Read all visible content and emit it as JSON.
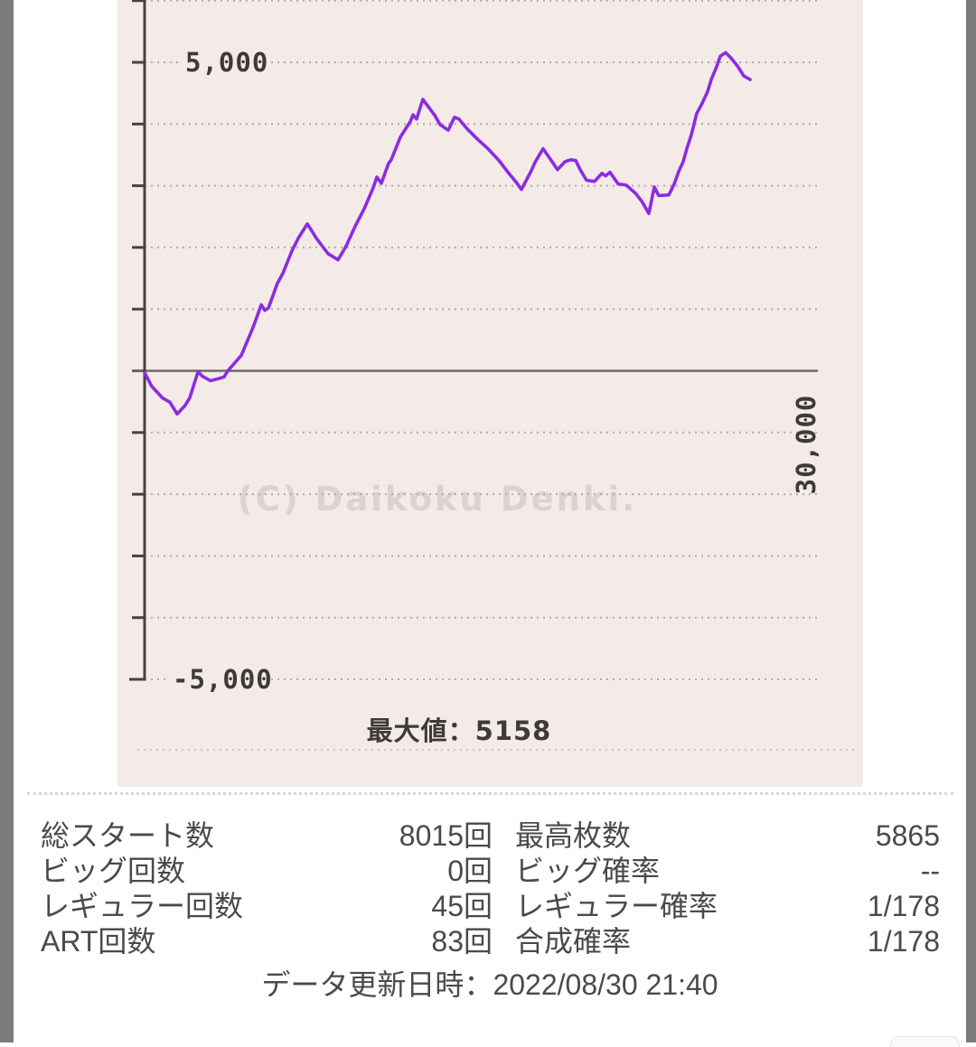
{
  "page": {
    "edge_color": "#7b7b7b",
    "panel_color": "#f4ebe8"
  },
  "chart_data": {
    "type": "line",
    "line_color": "#8b2ce0",
    "x_axis": {
      "min": 0,
      "max": 30000,
      "max_label": "30,000"
    },
    "y_axis": {
      "min": -5000,
      "max": 6000,
      "step": 1000,
      "top_label": "5,000",
      "bottom_label": "-5,000"
    },
    "max_caption": "最大値：5158",
    "max_value": 5158,
    "watermark": "(C) Daikoku Denki.",
    "grid": "dotted horizontal lines every 1000, solid zero line",
    "points": [
      [
        0,
        -30
      ],
      [
        320,
        -250
      ],
      [
        800,
        -440
      ],
      [
        1130,
        -510
      ],
      [
        1450,
        -700
      ],
      [
        1810,
        -560
      ],
      [
        2010,
        -440
      ],
      [
        2380,
        -15
      ],
      [
        2580,
        -90
      ],
      [
        2940,
        -160
      ],
      [
        3260,
        -130
      ],
      [
        3540,
        -100
      ],
      [
        3710,
        0
      ],
      [
        4310,
        250
      ],
      [
        4830,
        700
      ],
      [
        5200,
        1070
      ],
      [
        5360,
        980
      ],
      [
        5520,
        1020
      ],
      [
        5920,
        1420
      ],
      [
        6160,
        1580
      ],
      [
        6560,
        1940
      ],
      [
        6850,
        2150
      ],
      [
        7250,
        2380
      ],
      [
        7450,
        2270
      ],
      [
        7650,
        2150
      ],
      [
        8170,
        1900
      ],
      [
        8620,
        1800
      ],
      [
        8980,
        2020
      ],
      [
        9380,
        2340
      ],
      [
        9790,
        2630
      ],
      [
        10190,
        2970
      ],
      [
        10350,
        3140
      ],
      [
        10550,
        3040
      ],
      [
        10870,
        3360
      ],
      [
        10990,
        3420
      ],
      [
        11400,
        3790
      ],
      [
        11840,
        4040
      ],
      [
        11960,
        4150
      ],
      [
        12120,
        4080
      ],
      [
        12400,
        4400
      ],
      [
        12930,
        4140
      ],
      [
        13170,
        3990
      ],
      [
        13530,
        3900
      ],
      [
        13810,
        4110
      ],
      [
        14010,
        4080
      ],
      [
        14380,
        3920
      ],
      [
        14820,
        3760
      ],
      [
        15300,
        3600
      ],
      [
        15790,
        3410
      ],
      [
        16190,
        3220
      ],
      [
        16550,
        3060
      ],
      [
        16790,
        2940
      ],
      [
        17200,
        3220
      ],
      [
        17400,
        3380
      ],
      [
        17760,
        3600
      ],
      [
        18120,
        3410
      ],
      [
        18400,
        3260
      ],
      [
        18730,
        3390
      ],
      [
        18970,
        3420
      ],
      [
        19210,
        3410
      ],
      [
        19410,
        3260
      ],
      [
        19690,
        3090
      ],
      [
        20050,
        3070
      ],
      [
        20380,
        3200
      ],
      [
        20540,
        3160
      ],
      [
        20740,
        3220
      ],
      [
        21100,
        3030
      ],
      [
        21460,
        3010
      ],
      [
        21870,
        2880
      ],
      [
        22150,
        2750
      ],
      [
        22470,
        2550
      ],
      [
        22710,
        2980
      ],
      [
        22910,
        2840
      ],
      [
        23360,
        2850
      ],
      [
        23600,
        3030
      ],
      [
        23800,
        3230
      ],
      [
        24000,
        3390
      ],
      [
        24160,
        3600
      ],
      [
        24360,
        3820
      ],
      [
        24600,
        4170
      ],
      [
        24810,
        4310
      ],
      [
        25090,
        4530
      ],
      [
        25250,
        4720
      ],
      [
        25490,
        4930
      ],
      [
        25650,
        5100
      ],
      [
        25890,
        5158
      ],
      [
        26130,
        5070
      ],
      [
        26420,
        4940
      ],
      [
        26700,
        4780
      ],
      [
        26980,
        4720
      ]
    ]
  },
  "stats": {
    "rows": [
      {
        "l1": "総スタート数",
        "v1": "8015回",
        "l2": "最高枚数",
        "v2": "5865"
      },
      {
        "l1": "ビッグ回数",
        "v1": "0回",
        "l2": "ビッグ確率",
        "v2": "--"
      },
      {
        "l1": "レギュラー回数",
        "v1": "45回",
        "l2": "レギュラー確率",
        "v2": "1/178"
      },
      {
        "l1": "ART回数",
        "v1": "83回",
        "l2": "合成確率",
        "v2": "1/178"
      }
    ],
    "updated": {
      "label": "データ更新日時",
      "separator": "：",
      "value": "2022/08/30 21:40"
    }
  }
}
